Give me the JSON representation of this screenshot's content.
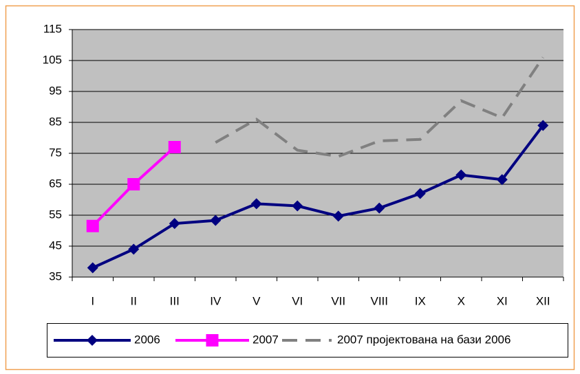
{
  "chart_data": {
    "type": "line",
    "categories": [
      "I",
      "II",
      "III",
      "IV",
      "V",
      "VI",
      "VII",
      "VIII",
      "IX",
      "X",
      "XI",
      "XII"
    ],
    "series": [
      {
        "name": "2006",
        "color": "#000080",
        "marker": "diamond",
        "dashed": false,
        "values": [
          38,
          44,
          52.3,
          53.3,
          58.7,
          58,
          54.7,
          57.3,
          62,
          68,
          66.5,
          84
        ]
      },
      {
        "name": "2007",
        "color": "#ff00ff",
        "marker": "square",
        "dashed": false,
        "values": [
          51.5,
          65,
          77,
          null,
          null,
          null,
          null,
          null,
          null,
          null,
          null,
          null
        ]
      },
      {
        "name": "2007 пројектована на бази 2006",
        "color": "#808080",
        "marker": "none",
        "dashed": true,
        "values": [
          null,
          null,
          null,
          78.5,
          86,
          76,
          74,
          79,
          79.5,
          92,
          86.5,
          106
        ]
      }
    ],
    "ylim": [
      35,
      115
    ],
    "yticks": [
      35,
      45,
      55,
      65,
      75,
      85,
      95,
      105,
      115
    ],
    "grid": true,
    "plot_background": "#c0c0c0",
    "legend": "bottom"
  }
}
